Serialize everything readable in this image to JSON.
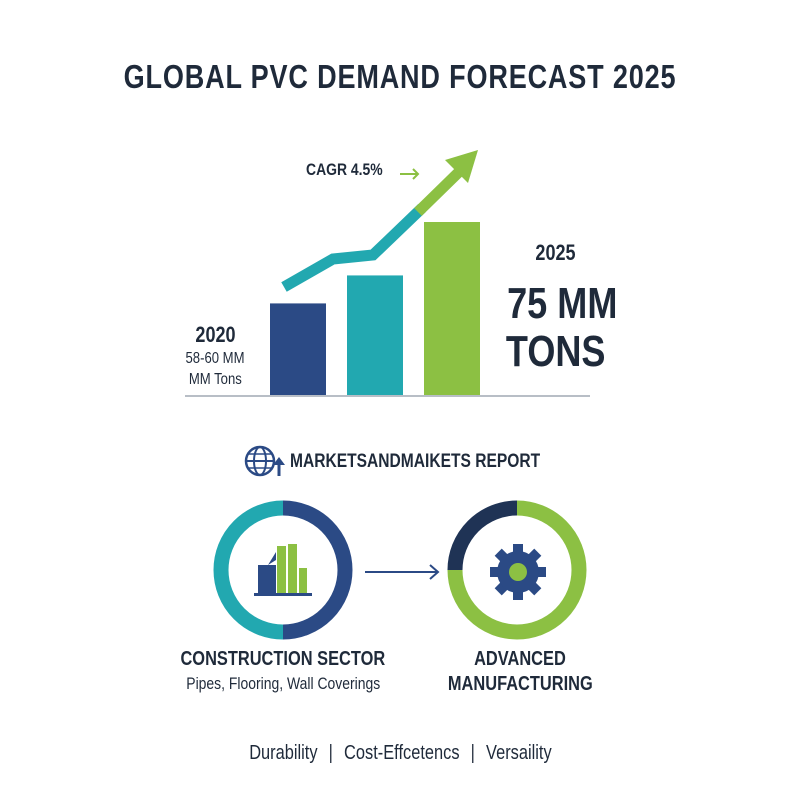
{
  "title": "GLOBAL PVC DEMAND FORECAST 2025",
  "chart_data": {
    "type": "bar",
    "categories": [
      "2020",
      "",
      "2025"
    ],
    "values": [
      59,
      64.5,
      75
    ],
    "ylim": [
      41,
      76
    ],
    "grid": false,
    "colors": [
      "#2b4a85",
      "#22a8b0",
      "#8cc043"
    ],
    "trend_annotation": "CAGR 4.5%",
    "start_label": {
      "year": "2020",
      "value": "58-60 MM",
      "unit": "MM Tons"
    },
    "end_label": {
      "year": "2025",
      "value": "75 MM",
      "unit": "TONS"
    }
  },
  "source": {
    "icon": "globe-arrow-icon",
    "label": "MARKETSANDMAIKETS REPORT"
  },
  "sectors": [
    {
      "icon": "buildings-icon",
      "title": "CONSTRUCTION SECTOR",
      "subtitle": "Pipes, Flooring, Wall Coverings"
    },
    {
      "icon": "gear-icon",
      "title": "ADVANCED",
      "title2": "MANUFACTURING"
    }
  ],
  "attributes": [
    "Durability",
    "Cost-Effcetencs",
    "Versaility"
  ],
  "colors": {
    "navy": "#2b4a85",
    "teal": "#22a8b0",
    "green": "#8cc043",
    "dark": "#1f2a3a"
  }
}
